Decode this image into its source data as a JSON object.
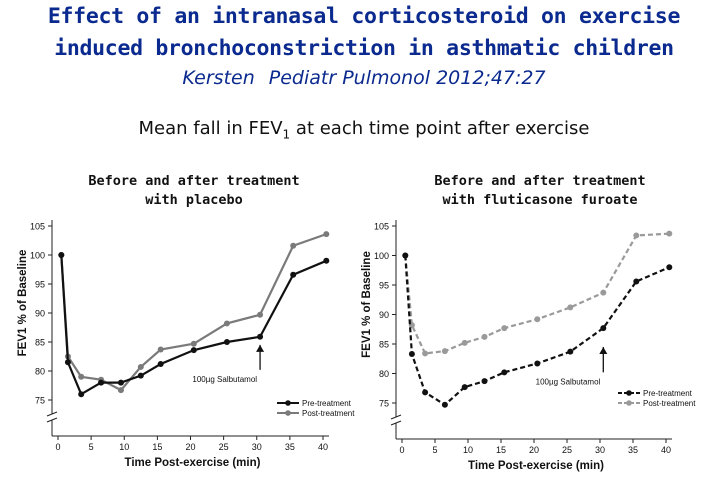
{
  "slide": {
    "title_line1": "Effect of an intranasal corticosteroid on exercise",
    "title_line2": "induced bronchoconstriction in asthmatic children",
    "citation_author": "Kersten",
    "citation_journal": "Pediatr Pulmonol 2012;47:27",
    "subtitle_prefix": "Mean fall in FEV",
    "subtitle_sub": "1",
    "subtitle_suffix": " at each time point after exercise",
    "caption_left_line1": "Before and after treatment",
    "caption_left_line2": "with placebo",
    "caption_right_line1": "Before and after treatment",
    "caption_right_line2": "with fluticasone furoate"
  },
  "chart_data": [
    {
      "type": "line",
      "xlabel": "Time Post-exercise (min)",
      "ylabel": "FEV1 % of Baseline",
      "xlim": [
        0,
        41
      ],
      "ylim": [
        72,
        105
      ],
      "x_ticks": [
        0,
        5,
        10,
        15,
        20,
        25,
        30,
        35,
        40
      ],
      "y_ticks": [
        75,
        80,
        85,
        90,
        95,
        100,
        105
      ],
      "axis_break": true,
      "legend_position": "bottom-right",
      "annotation": {
        "text": "100µg Salbutamol",
        "x": 30.5
      },
      "series": [
        {
          "name": "Pre-treatment",
          "color": "#111111",
          "dashed": false,
          "x": [
            0.5,
            1.5,
            3.5,
            6.5,
            9.5,
            12.5,
            15.5,
            20.5,
            25.5,
            30.5,
            35.5,
            40.5
          ],
          "y": [
            100,
            81.5,
            76,
            78,
            78,
            79.2,
            81.2,
            83.6,
            85,
            85.9,
            96.6,
            99
          ]
        },
        {
          "name": "Post-treatment",
          "color": "#7a7a7a",
          "dashed": false,
          "x": [
            0.5,
            1.5,
            3.5,
            6.5,
            9.5,
            12.5,
            15.5,
            20.5,
            25.5,
            30.5,
            35.5,
            40.5
          ],
          "y": [
            100,
            82.5,
            79,
            78.5,
            76.7,
            80.7,
            83.7,
            84.7,
            88.2,
            89.7,
            101.6,
            103.6
          ]
        }
      ]
    },
    {
      "type": "line",
      "xlabel": "Time Post-exercise (min)",
      "ylabel": "FEV1 % of Baseline",
      "xlim": [
        0,
        41
      ],
      "ylim": [
        72,
        105
      ],
      "x_ticks": [
        0,
        5,
        10,
        15,
        20,
        25,
        30,
        35,
        40
      ],
      "y_ticks": [
        75,
        80,
        85,
        90,
        95,
        100,
        105
      ],
      "axis_break": true,
      "legend_position": "bottom-right",
      "annotation": {
        "text": "100µg Salbutamol",
        "x": 30.5
      },
      "series": [
        {
          "name": "Pre-treatment",
          "color": "#111111",
          "dashed": true,
          "x": [
            0.5,
            1.5,
            3.5,
            6.5,
            9.5,
            12.5,
            15.5,
            20.5,
            25.5,
            30.5,
            35.5,
            40.5
          ],
          "y": [
            100,
            83.3,
            76.8,
            74.7,
            77.7,
            78.7,
            80.2,
            81.7,
            83.7,
            87.7,
            95.6,
            98
          ]
        },
        {
          "name": "Post-treatment",
          "color": "#9a9a9a",
          "dashed": true,
          "x": [
            0.5,
            1.5,
            3.5,
            6.5,
            9.5,
            12.5,
            15.5,
            20.5,
            25.5,
            30.5,
            35.5,
            40.5
          ],
          "y": [
            100,
            88.2,
            83.4,
            83.8,
            85.2,
            86.2,
            87.7,
            89.2,
            91.2,
            93.7,
            103.4,
            103.7
          ]
        }
      ]
    }
  ]
}
